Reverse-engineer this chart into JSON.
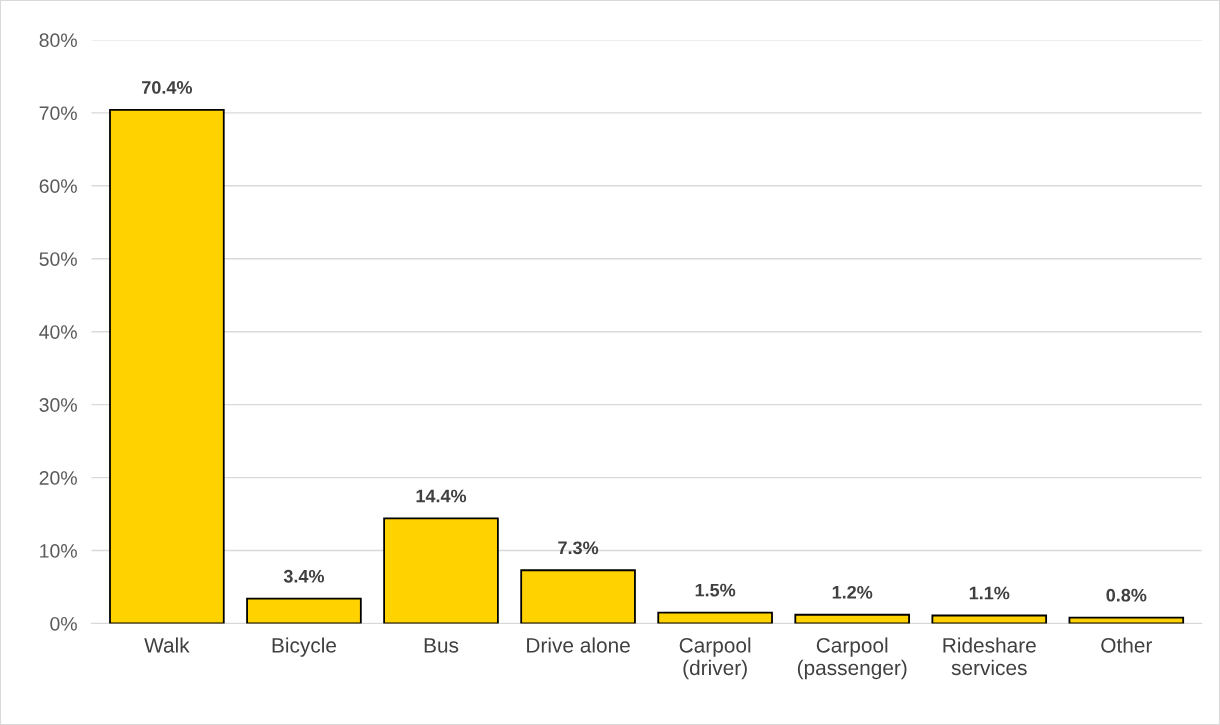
{
  "chart_data": {
    "type": "bar",
    "categories": [
      "Walk",
      "Bicycle",
      "Bus",
      "Drive alone",
      "Carpool\n(driver)",
      "Carpool\n(passenger)",
      "Rideshare\nservices",
      "Other"
    ],
    "values": [
      70.4,
      3.4,
      14.4,
      7.3,
      1.5,
      1.2,
      1.1,
      0.8
    ],
    "value_labels": [
      "70.4%",
      "3.4%",
      "14.4%",
      "7.3%",
      "1.5%",
      "1.2%",
      "1.1%",
      "0.8%"
    ],
    "color": "#ffd200",
    "ylim": [
      0,
      80
    ],
    "yticks": [
      {
        "value": 0,
        "label": "0%"
      },
      {
        "value": 10,
        "label": "10%"
      },
      {
        "value": 20,
        "label": "20%"
      },
      {
        "value": 30,
        "label": "30%"
      },
      {
        "value": 40,
        "label": "40%"
      },
      {
        "value": 50,
        "label": "50%"
      },
      {
        "value": 60,
        "label": "60%"
      },
      {
        "value": 70,
        "label": "70%"
      },
      {
        "value": 80,
        "label": "80%"
      }
    ],
    "grid": "y"
  }
}
